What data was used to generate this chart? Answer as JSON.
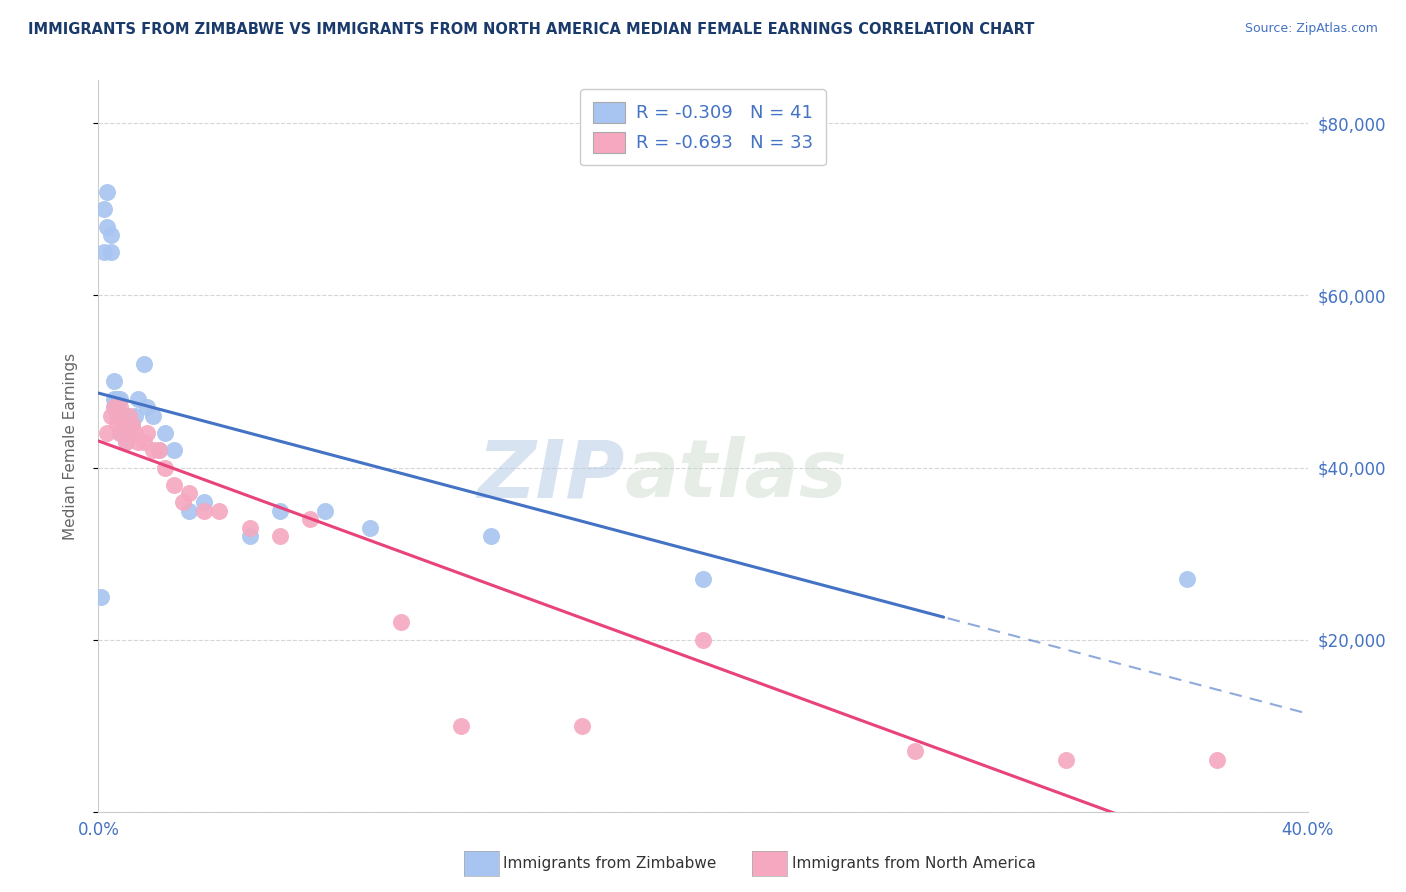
{
  "title": "IMMIGRANTS FROM ZIMBABWE VS IMMIGRANTS FROM NORTH AMERICA MEDIAN FEMALE EARNINGS CORRELATION CHART",
  "source": "Source: ZipAtlas.com",
  "ylabel": "Median Female Earnings",
  "xlim": [
    0.0,
    0.4
  ],
  "ylim": [
    0,
    85000
  ],
  "yticks": [
    0,
    20000,
    40000,
    60000,
    80000
  ],
  "ytick_labels_right": [
    "",
    "$20,000",
    "$40,000",
    "$60,000",
    "$80,000"
  ],
  "xticks": [
    0.0,
    0.1,
    0.2,
    0.3,
    0.4
  ],
  "xtick_labels": [
    "0.0%",
    "",
    "",
    "",
    "40.0%"
  ],
  "legend_r1": "R = -0.309   N = 41",
  "legend_r2": "R = -0.693   N = 33",
  "color_zimbabwe": "#a8c4f0",
  "color_north_america": "#f5a8bf",
  "color_line_zimbabwe": "#4472c4",
  "color_line_north_america": "#e8437a",
  "color_axis_labels": "#4472c4",
  "color_title": "#1a3a6b",
  "color_source": "#4472c4",
  "zimbabwe_x": [
    0.001,
    0.002,
    0.002,
    0.003,
    0.003,
    0.004,
    0.004,
    0.005,
    0.005,
    0.005,
    0.006,
    0.006,
    0.006,
    0.007,
    0.007,
    0.007,
    0.008,
    0.008,
    0.008,
    0.009,
    0.009,
    0.01,
    0.01,
    0.011,
    0.012,
    0.013,
    0.015,
    0.016,
    0.018,
    0.02,
    0.022,
    0.025,
    0.03,
    0.035,
    0.05,
    0.06,
    0.075,
    0.09,
    0.13,
    0.2,
    0.36
  ],
  "zimbabwe_y": [
    25000,
    65000,
    70000,
    68000,
    72000,
    65000,
    67000,
    47000,
    48000,
    50000,
    46000,
    47000,
    48000,
    44000,
    46000,
    48000,
    44000,
    45000,
    46000,
    43000,
    44000,
    44000,
    46000,
    45000,
    46000,
    48000,
    52000,
    47000,
    46000,
    42000,
    44000,
    42000,
    35000,
    36000,
    32000,
    35000,
    35000,
    33000,
    32000,
    27000,
    27000
  ],
  "north_america_x": [
    0.003,
    0.004,
    0.005,
    0.006,
    0.007,
    0.007,
    0.008,
    0.009,
    0.01,
    0.01,
    0.011,
    0.012,
    0.013,
    0.015,
    0.016,
    0.018,
    0.02,
    0.022,
    0.025,
    0.028,
    0.03,
    0.035,
    0.04,
    0.05,
    0.06,
    0.07,
    0.1,
    0.12,
    0.16,
    0.2,
    0.27,
    0.32,
    0.37
  ],
  "north_america_y": [
    44000,
    46000,
    47000,
    45000,
    47000,
    44000,
    45000,
    43000,
    46000,
    44000,
    45000,
    44000,
    43000,
    43000,
    44000,
    42000,
    42000,
    40000,
    38000,
    36000,
    37000,
    35000,
    35000,
    33000,
    32000,
    34000,
    22000,
    10000,
    10000,
    20000,
    7000,
    6000,
    6000
  ],
  "watermark_zip": "ZIP",
  "watermark_atlas": "atlas",
  "legend_label_1": "Immigrants from Zimbabwe",
  "legend_label_2": "Immigrants from North America"
}
